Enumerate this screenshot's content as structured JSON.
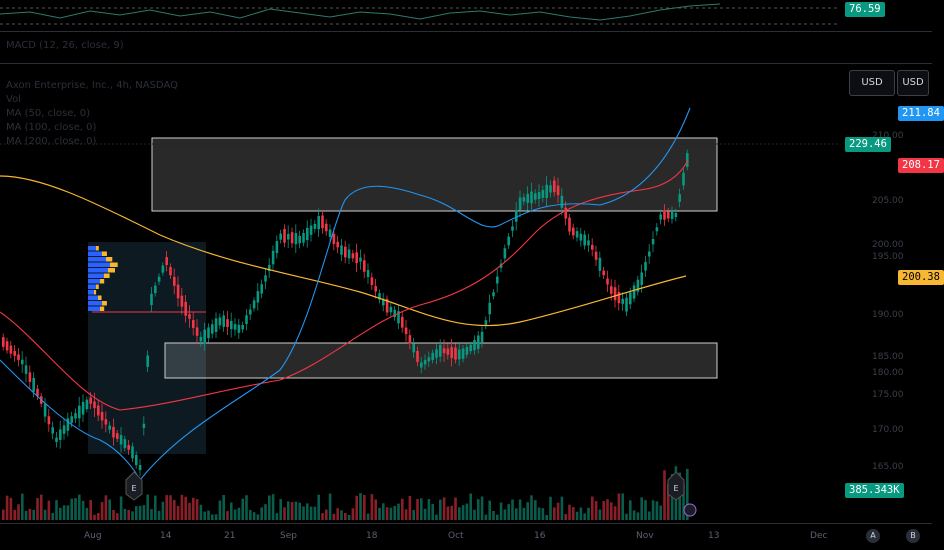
{
  "rsi_pane": {
    "value_badge": "76.59",
    "badge_color": "#089981"
  },
  "macd_pane": {
    "legend": "MACD (12, 26, close, 9)"
  },
  "main_pane": {
    "legend": {
      "symbol": "Axon Enterprise, Inc., 4h, NASDAQ",
      "volume": "Vol",
      "ma1": "MA (50, close, 0)",
      "ma2": "MA (100, close, 0)",
      "ma3": "MA (200, close, 0)"
    },
    "currency_buttons": [
      "USD",
      "USD"
    ]
  },
  "price_scale": {
    "ticks": [
      "210.00",
      "205.00",
      "200.00",
      "195.00",
      "190.00",
      "185.00",
      "180.00",
      "175.00",
      "170.00",
      "165.00"
    ],
    "badges": [
      {
        "value": "211.84",
        "color": "#2196f3"
      },
      {
        "value": "229.46",
        "color": "#089981"
      },
      {
        "value": "208.17",
        "color": "#f23645"
      },
      {
        "value": "200.38",
        "color": "#f7b731",
        "text_color": "#000000"
      },
      {
        "value": "385.343K",
        "color": "#089981"
      }
    ]
  },
  "time_axis": {
    "labels": [
      "Aug",
      "14",
      "21",
      "Sep",
      "18",
      "Oct",
      "16",
      "Nov",
      "13",
      "Dec"
    ]
  },
  "corner_buttons": [
    "A",
    "B"
  ],
  "event_markers": [
    "E",
    "E"
  ],
  "colors": {
    "up": "#089981",
    "down": "#f23645",
    "ma_blue": "#2196f3",
    "ma_red": "#f23645",
    "ma_orange": "#f7b731"
  }
}
